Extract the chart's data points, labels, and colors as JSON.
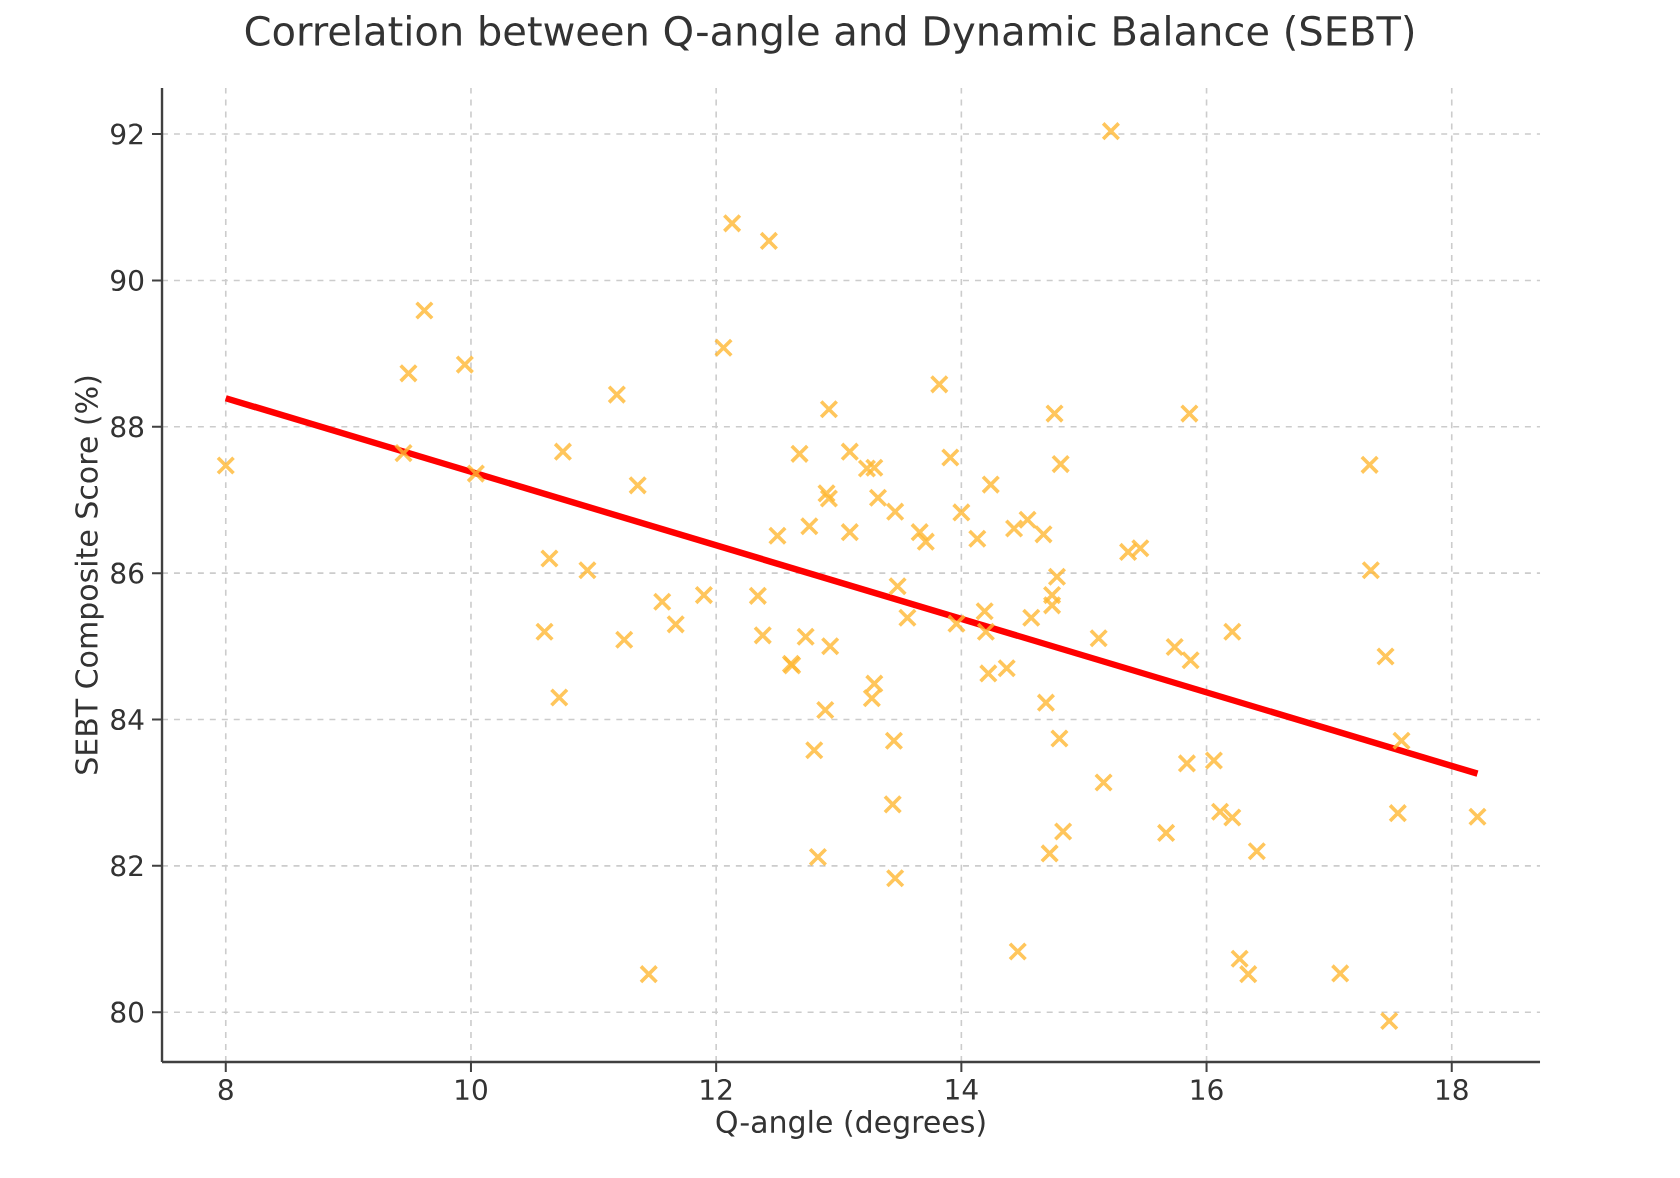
{
  "chart_data": {
    "type": "scatter",
    "title": "Correlation between Q-angle and Dynamic Balance (SEBT)",
    "xlabel": "Q-angle (degrees)",
    "ylabel": "SEBT Composite Score (%)",
    "xlim": [
      7.48,
      18.72
    ],
    "ylim": [
      79.32,
      92.63
    ],
    "xticks": [
      8,
      10,
      12,
      14,
      16,
      18
    ],
    "yticks": [
      80,
      82,
      84,
      86,
      88,
      90,
      92
    ],
    "grid": true,
    "series": [
      {
        "color": "#ffb833",
        "marker": "cross",
        "x": [
          8.0,
          9.45,
          9.49,
          9.62,
          9.95,
          10.04,
          10.75,
          11.19,
          11.36,
          10.64,
          10.95,
          12.13,
          12.43,
          12.06,
          12.92,
          12.68,
          13.09,
          12.9,
          12.92,
          12.5,
          12.76,
          13.09,
          10.6,
          10.72,
          11.25,
          11.56,
          11.67,
          11.9,
          12.34,
          12.38,
          12.61,
          12.62,
          12.73,
          12.93,
          12.89,
          12.8,
          12.83,
          11.45,
          15.22,
          13.82,
          14.76,
          15.86,
          17.33,
          14.81,
          13.91,
          13.23,
          13.29,
          13.32,
          13.46,
          14.24,
          14.0,
          13.66,
          13.71,
          14.13,
          14.43,
          14.54,
          14.67,
          15.36,
          15.46,
          17.34,
          13.48,
          13.56,
          13.96,
          14.19,
          14.2,
          14.78,
          14.74,
          14.74,
          14.57,
          15.12,
          15.74,
          15.87,
          16.21,
          17.46,
          14.22,
          14.37,
          13.29,
          13.27,
          14.69,
          13.45,
          14.8,
          15.84,
          16.06,
          15.16,
          17.59,
          18.21,
          17.56,
          13.44,
          16.11,
          16.21,
          15.67,
          14.83,
          14.72,
          16.41,
          13.46,
          14.46,
          16.27,
          16.34,
          17.09,
          17.49
        ],
        "values": [
          87.47,
          87.64,
          88.73,
          89.59,
          88.85,
          87.36,
          87.66,
          88.44,
          87.2,
          86.2,
          86.04,
          90.78,
          90.54,
          89.08,
          88.24,
          87.63,
          87.66,
          87.09,
          87.02,
          86.51,
          86.64,
          86.56,
          85.2,
          84.3,
          85.09,
          85.61,
          85.3,
          85.7,
          85.69,
          85.15,
          84.76,
          84.74,
          85.13,
          85.0,
          84.13,
          83.58,
          82.12,
          80.52,
          92.04,
          88.58,
          88.18,
          88.18,
          87.48,
          87.49,
          87.58,
          87.43,
          87.44,
          87.03,
          86.84,
          87.21,
          86.83,
          86.56,
          86.43,
          86.47,
          86.61,
          86.73,
          86.53,
          86.29,
          86.34,
          86.04,
          85.82,
          85.39,
          85.31,
          85.48,
          85.2,
          85.95,
          85.7,
          85.56,
          85.39,
          85.11,
          84.99,
          84.81,
          85.2,
          84.86,
          84.63,
          84.7,
          84.49,
          84.29,
          84.23,
          83.71,
          83.74,
          83.4,
          83.44,
          83.14,
          83.71,
          82.67,
          82.72,
          82.84,
          82.74,
          82.66,
          82.45,
          82.47,
          82.17,
          82.2,
          81.83,
          80.83,
          80.73,
          80.52,
          80.53,
          79.88
        ]
      },
      {
        "type": "line",
        "color": "#ff0000",
        "line_style": "solid",
        "marker": "none",
        "x": [
          8.0,
          18.21
        ],
        "values": [
          88.39,
          83.26
        ]
      }
    ]
  }
}
